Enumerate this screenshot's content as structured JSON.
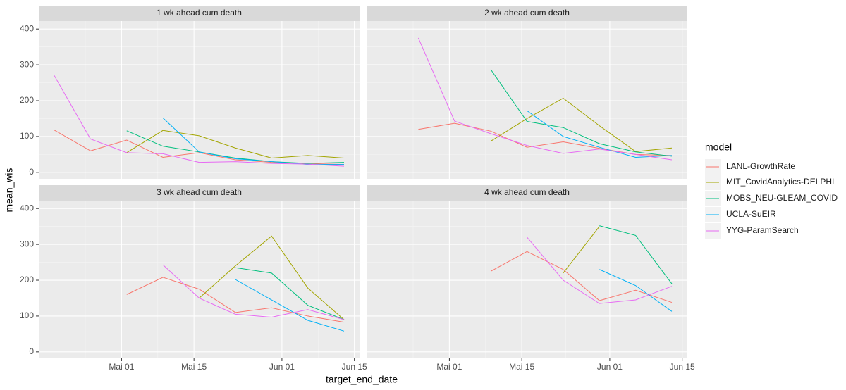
{
  "x_label": "target_end_date",
  "y_label": "mean_wis",
  "legend_title": "model",
  "chart_data": [
    {
      "type": "line",
      "title": "1 wk ahead cum death",
      "x": [
        "04-18",
        "04-25",
        "05-02",
        "05-09",
        "05-16",
        "05-23",
        "05-30",
        "06-06",
        "06-13"
      ],
      "xlim": [
        "04-15",
        "06-16"
      ],
      "xticks": [
        {
          "value": "05-01",
          "label": "Mai 01"
        },
        {
          "value": "05-15",
          "label": "Mai 15"
        },
        {
          "value": "06-01",
          "label": "Jun 01"
        },
        {
          "value": "06-15",
          "label": "Jun 15"
        }
      ],
      "ylim": [
        -18,
        422
      ],
      "yticks": [
        0,
        100,
        200,
        300,
        400
      ],
      "grid": true,
      "series": [
        {
          "name": "LANL-GrowthRate",
          "color": "#F8766D",
          "values": [
            118,
            60,
            90,
            42,
            55,
            35,
            28,
            25,
            22
          ]
        },
        {
          "name": "MIT_CovidAnalytics-DELPHI",
          "color": "#A3A500",
          "values": [
            null,
            null,
            55,
            117,
            102,
            68,
            40,
            47,
            40
          ]
        },
        {
          "name": "MOBS_NEU-GLEAM_COVID",
          "color": "#00BF7D",
          "values": [
            null,
            null,
            116,
            73,
            57,
            40,
            30,
            25,
            28
          ]
        },
        {
          "name": "UCLA-SuEIR",
          "color": "#00B0F6",
          "values": [
            null,
            null,
            null,
            152,
            57,
            38,
            30,
            22,
            22
          ]
        },
        {
          "name": "YYG-ParamSearch",
          "color": "#E76BF3",
          "values": [
            270,
            93,
            55,
            52,
            28,
            30,
            25,
            23,
            17
          ]
        }
      ]
    },
    {
      "type": "line",
      "title": "2 wk ahead cum death",
      "x": [
        "04-18",
        "04-25",
        "05-02",
        "05-09",
        "05-16",
        "05-23",
        "05-30",
        "06-06",
        "06-13"
      ],
      "xlim": [
        "04-15",
        "06-16"
      ],
      "xticks": [
        {
          "value": "05-01",
          "label": "Mai 01"
        },
        {
          "value": "05-15",
          "label": "Mai 15"
        },
        {
          "value": "06-01",
          "label": "Jun 01"
        },
        {
          "value": "06-15",
          "label": "Jun 15"
        }
      ],
      "ylim": [
        -18,
        422
      ],
      "yticks": [
        0,
        100,
        200,
        300,
        400
      ],
      "grid": true,
      "series": [
        {
          "name": "LANL-GrowthRate",
          "color": "#F8766D",
          "values": [
            null,
            120,
            137,
            115,
            70,
            85,
            67,
            50,
            47
          ]
        },
        {
          "name": "MIT_CovidAnalytics-DELPHI",
          "color": "#A3A500",
          "values": [
            null,
            null,
            null,
            87,
            150,
            207,
            130,
            58,
            68
          ]
        },
        {
          "name": "MOBS_NEU-GLEAM_COVID",
          "color": "#00BF7D",
          "values": [
            null,
            null,
            null,
            287,
            142,
            125,
            80,
            57,
            45
          ]
        },
        {
          "name": "UCLA-SuEIR",
          "color": "#00B0F6",
          "values": [
            null,
            null,
            null,
            null,
            172,
            100,
            70,
            42,
            47
          ]
        },
        {
          "name": "YYG-ParamSearch",
          "color": "#E76BF3",
          "values": [
            null,
            375,
            143,
            108,
            75,
            53,
            65,
            50,
            35
          ]
        }
      ]
    },
    {
      "type": "line",
      "title": "3 wk ahead cum death",
      "x": [
        "04-18",
        "04-25",
        "05-02",
        "05-09",
        "05-16",
        "05-23",
        "05-30",
        "06-06",
        "06-13"
      ],
      "xlim": [
        "04-15",
        "06-16"
      ],
      "xticks": [
        {
          "value": "05-01",
          "label": "Mai 01"
        },
        {
          "value": "05-15",
          "label": "Mai 15"
        },
        {
          "value": "06-01",
          "label": "Jun 01"
        },
        {
          "value": "06-15",
          "label": "Jun 15"
        }
      ],
      "ylim": [
        -18,
        422
      ],
      "yticks": [
        0,
        100,
        200,
        300,
        400
      ],
      "grid": true,
      "series": [
        {
          "name": "LANL-GrowthRate",
          "color": "#F8766D",
          "values": [
            null,
            null,
            160,
            208,
            175,
            110,
            123,
            100,
            83
          ]
        },
        {
          "name": "MIT_CovidAnalytics-DELPHI",
          "color": "#A3A500",
          "values": [
            null,
            null,
            null,
            null,
            150,
            240,
            323,
            178,
            90
          ]
        },
        {
          "name": "MOBS_NEU-GLEAM_COVID",
          "color": "#00BF7D",
          "values": [
            null,
            null,
            null,
            null,
            null,
            235,
            220,
            130,
            90
          ]
        },
        {
          "name": "UCLA-SuEIR",
          "color": "#00B0F6",
          "values": [
            null,
            null,
            null,
            null,
            null,
            202,
            145,
            88,
            58
          ]
        },
        {
          "name": "YYG-ParamSearch",
          "color": "#E76BF3",
          "values": [
            null,
            null,
            null,
            243,
            150,
            105,
            97,
            118,
            90
          ]
        }
      ]
    },
    {
      "type": "line",
      "title": "4 wk ahead cum death",
      "x": [
        "04-18",
        "04-25",
        "05-02",
        "05-09",
        "05-16",
        "05-23",
        "05-30",
        "06-06",
        "06-13"
      ],
      "xlim": [
        "04-15",
        "06-16"
      ],
      "xticks": [
        {
          "value": "05-01",
          "label": "Mai 01"
        },
        {
          "value": "05-15",
          "label": "Mai 15"
        },
        {
          "value": "06-01",
          "label": "Jun 01"
        },
        {
          "value": "06-15",
          "label": "Jun 15"
        }
      ],
      "ylim": [
        -18,
        422
      ],
      "yticks": [
        0,
        100,
        200,
        300,
        400
      ],
      "grid": true,
      "series": [
        {
          "name": "LANL-GrowthRate",
          "color": "#F8766D",
          "values": [
            null,
            null,
            null,
            225,
            280,
            230,
            143,
            172,
            138
          ]
        },
        {
          "name": "MIT_CovidAnalytics-DELPHI",
          "color": "#A3A500",
          "values": [
            null,
            null,
            null,
            null,
            null,
            220,
            350,
            null,
            null
          ]
        },
        {
          "name": "MOBS_NEU-GLEAM_COVID",
          "color": "#00BF7D",
          "values": [
            null,
            null,
            null,
            null,
            null,
            null,
            352,
            325,
            190
          ]
        },
        {
          "name": "UCLA-SuEIR",
          "color": "#00B0F6",
          "values": [
            null,
            null,
            null,
            null,
            null,
            null,
            230,
            185,
            113
          ]
        },
        {
          "name": "YYG-ParamSearch",
          "color": "#E76BF3",
          "values": [
            null,
            null,
            null,
            null,
            320,
            200,
            135,
            145,
            183
          ]
        }
      ]
    }
  ]
}
